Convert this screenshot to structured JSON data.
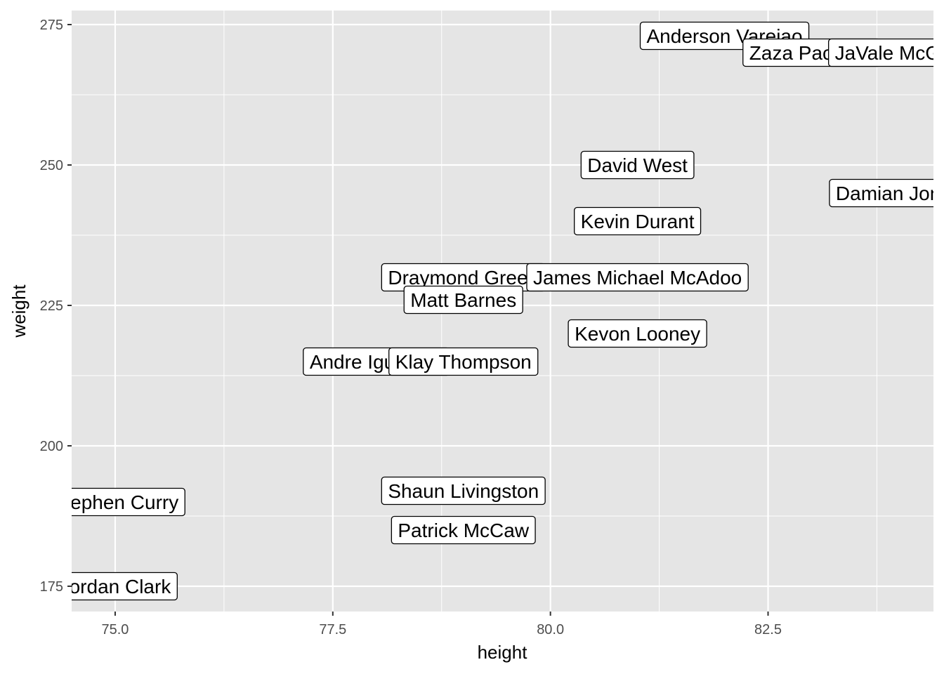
{
  "chart_data": {
    "type": "scatter",
    "title": "",
    "xlabel": "height",
    "ylabel": "weight",
    "xlim": [
      74.5,
      84.4
    ],
    "ylim": [
      170.5,
      277.5
    ],
    "x_ticks": [
      75.0,
      77.5,
      80.0,
      82.5
    ],
    "x_tick_labels": [
      "75.0",
      "77.5",
      "80.0",
      "82.5"
    ],
    "y_ticks": [
      175,
      200,
      225,
      250,
      275
    ],
    "y_tick_labels": [
      "175",
      "200",
      "225",
      "250",
      "275"
    ],
    "grid": true,
    "panel_background": "#e5e5e5",
    "grid_color": "#ffffff",
    "label_border_color": "#000000",
    "label_fill": "#ffffff",
    "points": [
      {
        "label": "Stephen Curry",
        "x": 75,
        "y": 190
      },
      {
        "label": "Jordan Clark",
        "x": 75,
        "y": 175
      },
      {
        "label": "Andre Iguodala",
        "x": 78,
        "y": 215
      },
      {
        "label": "Klay Thompson",
        "x": 79,
        "y": 215
      },
      {
        "label": "Draymond Green",
        "x": 79,
        "y": 230
      },
      {
        "label": "Matt Barnes",
        "x": 79,
        "y": 226
      },
      {
        "label": "Shaun Livingston",
        "x": 79,
        "y": 192
      },
      {
        "label": "Patrick McCaw",
        "x": 79,
        "y": 185
      },
      {
        "label": "David West",
        "x": 81,
        "y": 250
      },
      {
        "label": "Kevin Durant",
        "x": 81,
        "y": 240
      },
      {
        "label": "James Michael McAdoo",
        "x": 81,
        "y": 230
      },
      {
        "label": "Kevon Looney",
        "x": 81,
        "y": 220
      },
      {
        "label": "Anderson Varejao",
        "x": 82,
        "y": 273
      },
      {
        "label": "Zaza Pachulia",
        "x": 83,
        "y": 270
      },
      {
        "label": "JaVale McGee",
        "x": 84,
        "y": 270
      },
      {
        "label": "Damian Jones",
        "x": 84,
        "y": 245
      }
    ]
  }
}
